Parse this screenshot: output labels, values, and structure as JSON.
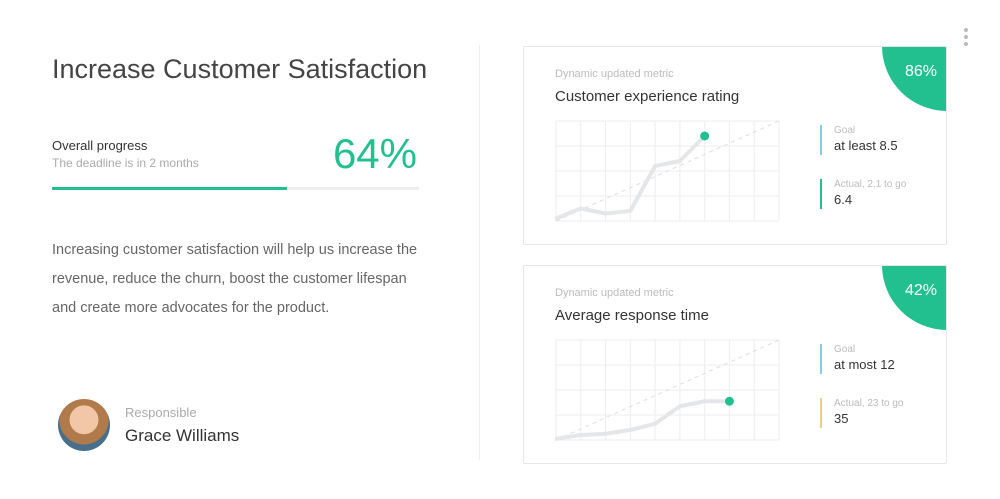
{
  "title": "Increase Customer Satisfaction",
  "progress": {
    "label": "Overall progress",
    "sub": "The deadline is in 2 months",
    "value_text": "64%",
    "value": 64
  },
  "description": "Increasing customer satisfaction will help us increase the revenue, reduce the churn, boost the customer lifespan and create more advocates for the product.",
  "responsible": {
    "label": "Responsible",
    "name": "Grace Williams"
  },
  "colors": {
    "accent": "#22c08f",
    "goal_bar": "#7fd0e0",
    "actual_ok": "#22c08f",
    "actual_warn": "#f0d080"
  },
  "cards": [
    {
      "subtitle": "Dynamic updated metric",
      "title": "Customer experience rating",
      "percent": "86%",
      "goal_label": "Goal",
      "goal_value": "at least 8.5",
      "actual_label": "Actual, 2.1 to go",
      "actual_value": "6.4",
      "actual_color": "#22c08f",
      "chart_data": {
        "type": "line",
        "x": [
          0,
          1,
          2,
          3,
          4,
          5,
          6
        ],
        "y": [
          0.1,
          0.5,
          0.3,
          0.4,
          2.2,
          2.4,
          3.4
        ],
        "target": [
          [
            0,
            0
          ],
          [
            9,
            4
          ]
        ],
        "xlim": [
          0,
          9
        ],
        "ylim": [
          0,
          4
        ],
        "grid": true
      }
    },
    {
      "subtitle": "Dynamic updated metric",
      "title": "Average response time",
      "percent": "42%",
      "goal_label": "Goal",
      "goal_value": "at most 12",
      "actual_label": "Actual, 23 to go",
      "actual_value": "35",
      "actual_color": "#f0d080",
      "chart_data": {
        "type": "line",
        "x": [
          0,
          1,
          2,
          3,
          4,
          5,
          6,
          7
        ],
        "y": [
          0.05,
          0.2,
          0.25,
          0.4,
          0.65,
          1.35,
          1.55,
          1.55
        ],
        "target": [
          [
            0,
            0
          ],
          [
            9,
            4
          ]
        ],
        "xlim": [
          0,
          9
        ],
        "ylim": [
          0,
          4
        ],
        "grid": true
      }
    }
  ]
}
